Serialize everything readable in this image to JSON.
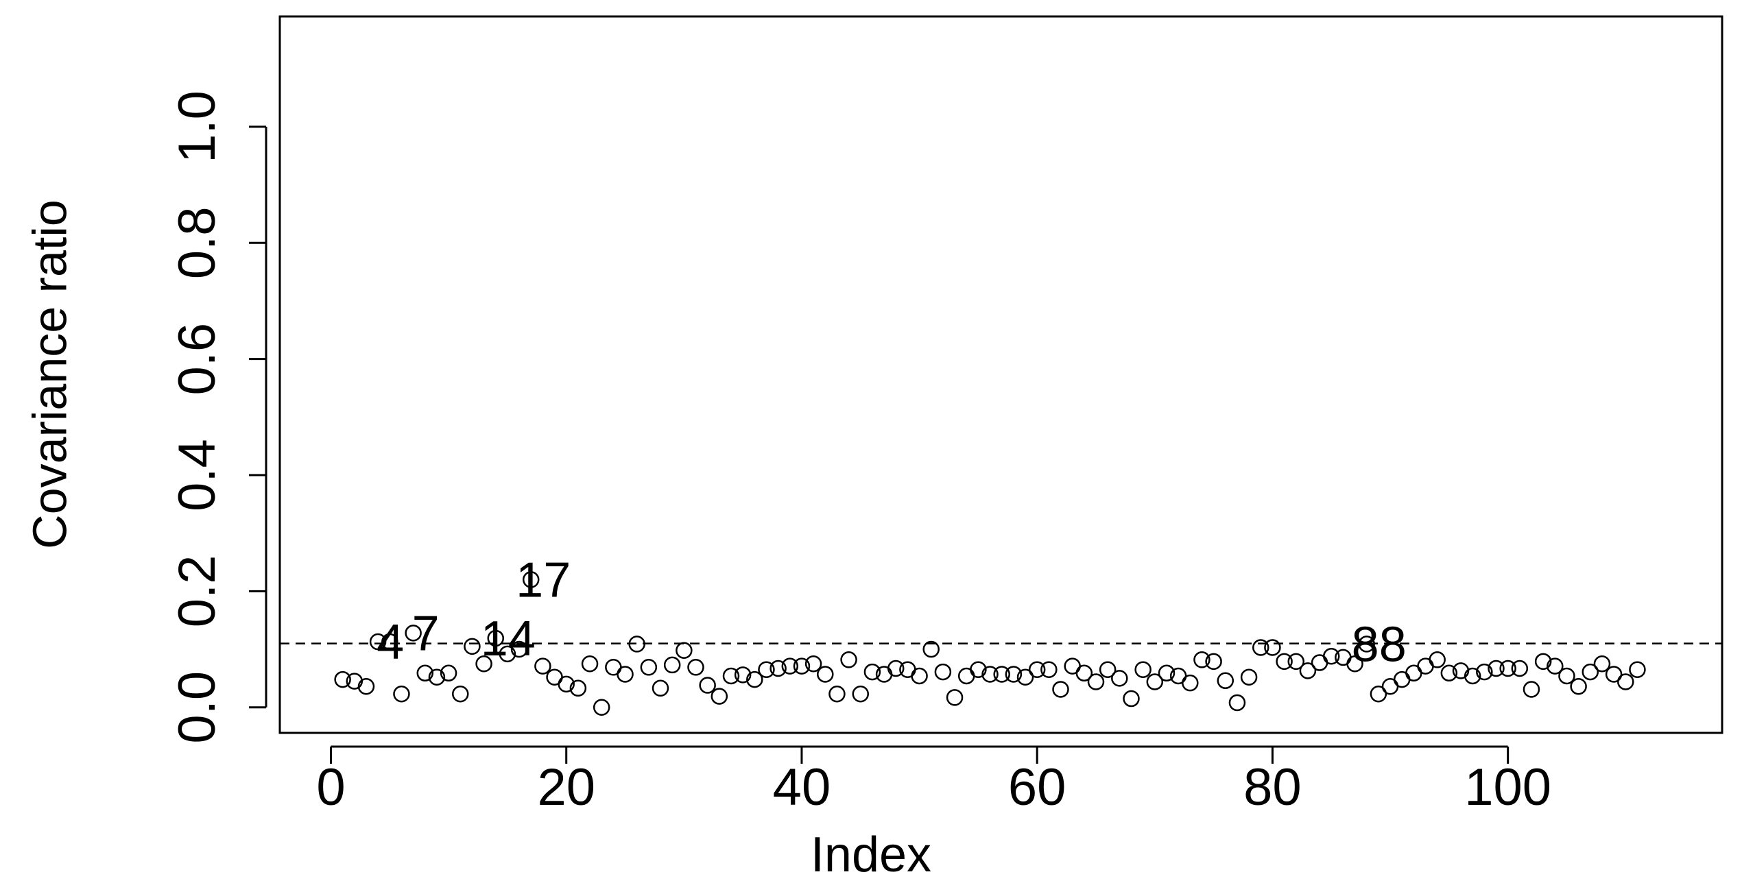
{
  "chart_data": {
    "type": "scatter",
    "xlabel": "Index",
    "ylabel": "Covariance ratio",
    "x": [
      1,
      2,
      3,
      4,
      5,
      6,
      7,
      8,
      9,
      10,
      11,
      12,
      13,
      14,
      15,
      16,
      17,
      18,
      19,
      20,
      21,
      22,
      23,
      24,
      25,
      26,
      27,
      28,
      29,
      30,
      31,
      32,
      33,
      34,
      35,
      36,
      37,
      38,
      39,
      40,
      41,
      42,
      43,
      44,
      45,
      46,
      47,
      48,
      49,
      50,
      51,
      52,
      53,
      54,
      55,
      56,
      57,
      58,
      59,
      60,
      61,
      62,
      63,
      64,
      65,
      66,
      67,
      68,
      69,
      70,
      71,
      72,
      73,
      74,
      75,
      76,
      77,
      78,
      79,
      80,
      81,
      82,
      83,
      84,
      85,
      86,
      87,
      88,
      89,
      90,
      91,
      92,
      93,
      94,
      95,
      96,
      97,
      98,
      99,
      100,
      101,
      102,
      103,
      104,
      105,
      106,
      107,
      108,
      109,
      110,
      111
    ],
    "values": [
      0.048,
      0.045,
      0.036,
      0.113,
      0.113,
      0.023,
      0.128,
      0.059,
      0.052,
      0.059,
      0.023,
      0.105,
      0.075,
      0.119,
      0.092,
      0.1,
      0.22,
      0.071,
      0.052,
      0.04,
      0.033,
      0.075,
      0.0,
      0.069,
      0.057,
      0.109,
      0.069,
      0.033,
      0.073,
      0.098,
      0.069,
      0.038,
      0.019,
      0.054,
      0.056,
      0.048,
      0.065,
      0.067,
      0.071,
      0.071,
      0.075,
      0.057,
      0.023,
      0.082,
      0.023,
      0.061,
      0.057,
      0.067,
      0.065,
      0.054,
      0.1,
      0.061,
      0.017,
      0.054,
      0.065,
      0.057,
      0.057,
      0.057,
      0.052,
      0.065,
      0.065,
      0.031,
      0.071,
      0.059,
      0.044,
      0.065,
      0.05,
      0.015,
      0.065,
      0.044,
      0.059,
      0.054,
      0.042,
      0.082,
      0.079,
      0.046,
      0.008,
      0.052,
      0.103,
      0.103,
      0.079,
      0.079,
      0.063,
      0.077,
      0.088,
      0.086,
      0.075,
      0.109,
      0.023,
      0.036,
      0.048,
      0.059,
      0.071,
      0.082,
      0.059,
      0.063,
      0.054,
      0.061,
      0.067,
      0.067,
      0.067,
      0.031,
      0.079,
      0.071,
      0.054,
      0.036,
      0.061,
      0.075,
      0.057,
      0.044,
      0.065
    ],
    "color": "#000000",
    "reference_line": 0.11,
    "annotations": [
      {
        "index": 4,
        "text": "4"
      },
      {
        "index": 7,
        "text": "7"
      },
      {
        "index": 14,
        "text": "14"
      },
      {
        "index": 17,
        "text": "17"
      },
      {
        "index": 88,
        "text": "88"
      }
    ],
    "xlim": [
      -4.34,
      118.2
    ],
    "xticks": [
      0,
      20,
      40,
      60,
      80,
      100
    ],
    "ylim": [
      -0.044,
      1.19
    ],
    "yticks": [
      {
        "value": 0,
        "label": "0.0"
      },
      0.2,
      0.4,
      0.6,
      0.8,
      {
        "value": 1,
        "label": "1.0"
      }
    ]
  }
}
